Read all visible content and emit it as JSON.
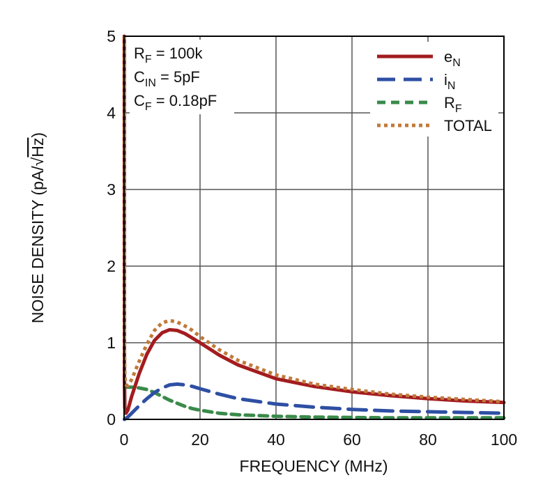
{
  "chart_data": {
    "type": "line",
    "xlabel": "FREQUENCY (MHz)",
    "ylabel_prefix": "NOISE DENSITY (pA/",
    "ylabel_radical": "√",
    "ylabel_radicand": "Hz",
    "ylabel_suffix": ")",
    "xlim": [
      0,
      100
    ],
    "ylim": [
      0,
      5
    ],
    "x_ticks": [
      0,
      20,
      40,
      60,
      80,
      100
    ],
    "y_ticks": [
      0,
      1,
      2,
      3,
      4,
      5
    ],
    "grid": true,
    "legend_position": "top-right",
    "annotations": [
      {
        "main": "R",
        "sub": "F",
        "rest": " = 100k"
      },
      {
        "main": "C",
        "sub": "IN",
        "rest": " = 5pF"
      },
      {
        "main": "C",
        "sub": "F",
        "rest": " = 0.18pF"
      }
    ],
    "series": [
      {
        "name_main": "e",
        "name_sub": "N",
        "color": "#a31c1f",
        "dash": "solid",
        "x": [
          0.05,
          0.1,
          0.2,
          0.5,
          1,
          2,
          4,
          6,
          8,
          10,
          12,
          14,
          16,
          18,
          20,
          25,
          30,
          40,
          50,
          60,
          70,
          80,
          90,
          100
        ],
        "y": [
          5.0,
          0.55,
          0.15,
          0.08,
          0.12,
          0.3,
          0.6,
          0.85,
          1.03,
          1.13,
          1.17,
          1.16,
          1.12,
          1.06,
          1.0,
          0.84,
          0.71,
          0.53,
          0.43,
          0.36,
          0.31,
          0.27,
          0.24,
          0.22
        ]
      },
      {
        "name_main": "i",
        "name_sub": "N",
        "color": "#2e4fa3",
        "dash": "long",
        "x": [
          0.1,
          1,
          2,
          4,
          6,
          8,
          10,
          12,
          14,
          16,
          18,
          20,
          25,
          30,
          40,
          50,
          60,
          70,
          80,
          90,
          100
        ],
        "y": [
          0.0,
          0.03,
          0.08,
          0.18,
          0.27,
          0.35,
          0.41,
          0.45,
          0.46,
          0.45,
          0.43,
          0.4,
          0.33,
          0.27,
          0.2,
          0.16,
          0.13,
          0.11,
          0.1,
          0.09,
          0.08
        ]
      },
      {
        "name_main": "R",
        "name_sub": "F",
        "color": "#3a8a4a",
        "dash": "short",
        "x": [
          0.1,
          2,
          4,
          6,
          8,
          10,
          12,
          14,
          16,
          18,
          20,
          25,
          30,
          40,
          50,
          60,
          70,
          80,
          90,
          100
        ],
        "y": [
          0.42,
          0.42,
          0.41,
          0.39,
          0.35,
          0.3,
          0.25,
          0.21,
          0.17,
          0.14,
          0.12,
          0.08,
          0.06,
          0.04,
          0.03,
          0.025,
          0.02,
          0.02,
          0.02,
          0.02
        ]
      },
      {
        "name_main": "TOTAL",
        "name_sub": "",
        "color": "#c07a3a",
        "dash": "dot",
        "x": [
          0.05,
          0.1,
          0.2,
          0.5,
          1,
          2,
          4,
          6,
          8,
          10,
          12,
          14,
          16,
          18,
          20,
          25,
          30,
          40,
          50,
          60,
          70,
          80,
          90,
          100
        ],
        "y": [
          5.0,
          1.0,
          0.55,
          0.45,
          0.44,
          0.52,
          0.76,
          0.98,
          1.16,
          1.26,
          1.29,
          1.27,
          1.22,
          1.16,
          1.08,
          0.91,
          0.77,
          0.58,
          0.46,
          0.39,
          0.33,
          0.29,
          0.26,
          0.23
        ]
      }
    ]
  }
}
